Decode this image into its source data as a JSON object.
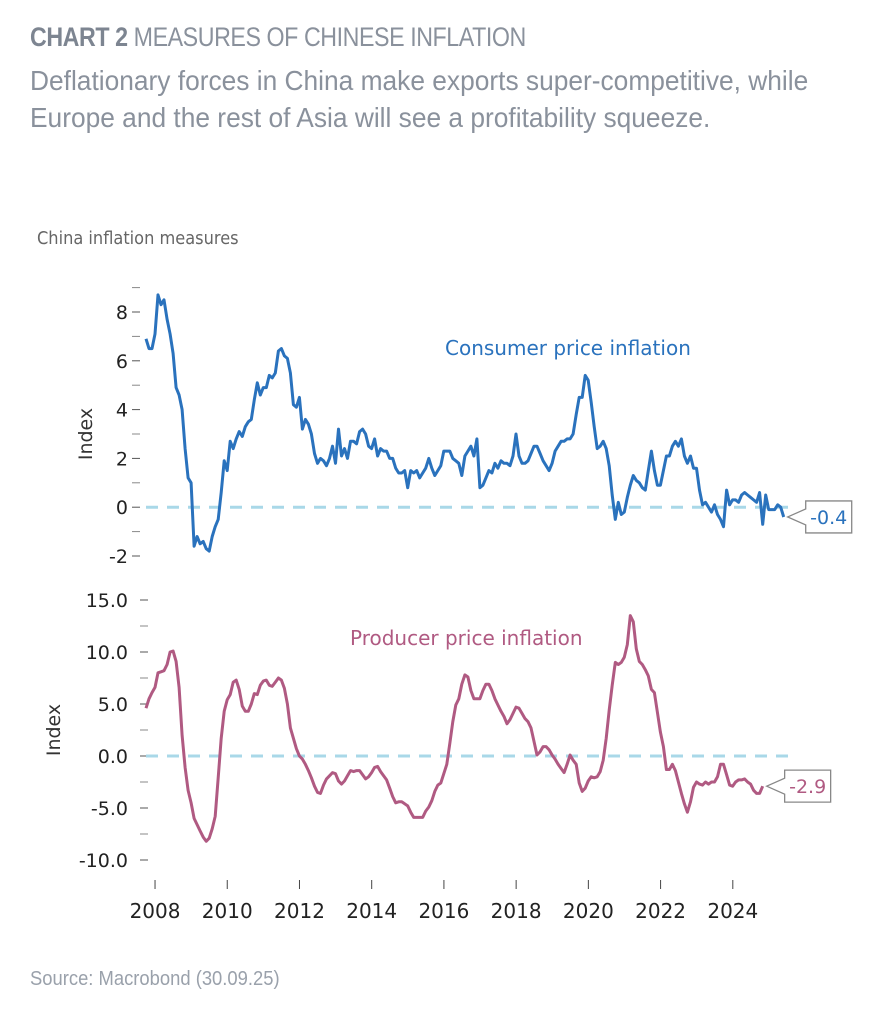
{
  "header": {
    "chart_number": "CHART 2",
    "title": "MEASURES OF CHINESE INFLATION",
    "subtitle": "Deflationary forces in China make exports super-competitive, while Europe and the rest of Asia will see a profitability squeeze."
  },
  "chart_label": "China inflation measures",
  "source": "Source: Macrobond (30.09.25)",
  "colors": {
    "cpi": "#2a72bd",
    "ppi": "#b05a82",
    "zero_line": "#a9d8e8",
    "text": "#222222",
    "callout_border": "#888888"
  },
  "chart_data": [
    {
      "type": "line",
      "title": "Consumer price inflation",
      "xlabel": "",
      "ylabel": "Index",
      "ylim": [
        -2,
        9
      ],
      "yticks": [
        "8",
        "6",
        "4",
        "2",
        "0",
        "-2"
      ],
      "ytick_values": [
        8,
        6,
        4,
        2,
        0,
        -2
      ],
      "xlim": [
        2007.75,
        2025.75
      ],
      "reference_line": 0,
      "last_value_label": "-0.4",
      "series": [
        {
          "name": "Consumer price inflation",
          "x_start": 2007.75,
          "x_step": 0.0833,
          "values": [
            6.9,
            6.5,
            6.5,
            7.1,
            8.7,
            8.3,
            8.5,
            7.7,
            7.1,
            6.3,
            4.9,
            4.6,
            4.0,
            2.4,
            1.2,
            1.0,
            -1.6,
            -1.2,
            -1.5,
            -1.4,
            -1.7,
            -1.8,
            -1.2,
            -0.8,
            -0.5,
            0.6,
            1.9,
            1.5,
            2.7,
            2.4,
            2.8,
            3.1,
            2.9,
            3.3,
            3.5,
            3.6,
            4.4,
            5.1,
            4.6,
            4.9,
            4.9,
            5.4,
            5.3,
            5.5,
            6.4,
            6.5,
            6.2,
            6.1,
            5.5,
            4.2,
            4.1,
            4.5,
            3.2,
            3.6,
            3.4,
            3.0,
            2.2,
            1.8,
            2.0,
            1.9,
            1.7,
            2.0,
            2.5,
            1.8,
            3.2,
            2.1,
            2.4,
            2.0,
            2.7,
            2.7,
            2.6,
            3.1,
            3.2,
            3.0,
            2.5,
            2.4,
            2.8,
            2.1,
            2.4,
            2.3,
            2.3,
            2.0,
            2.0,
            1.6,
            1.4,
            1.4,
            1.5,
            0.8,
            1.5,
            1.4,
            1.5,
            1.2,
            1.4,
            1.6,
            2.0,
            1.6,
            1.3,
            1.5,
            1.7,
            2.3,
            2.3,
            2.3,
            2.0,
            1.9,
            1.8,
            1.3,
            2.1,
            2.3,
            2.5,
            2.1,
            2.8,
            0.8,
            0.9,
            1.2,
            1.5,
            1.4,
            1.8,
            1.6,
            1.9,
            1.8,
            1.8,
            1.7,
            2.1,
            3.0,
            2.1,
            1.8,
            1.8,
            1.9,
            2.2,
            2.5,
            2.5,
            2.2,
            1.9,
            1.7,
            1.5,
            1.8,
            2.3,
            2.5,
            2.7,
            2.7,
            2.8,
            2.8,
            3.0,
            3.8,
            4.5,
            4.5,
            5.4,
            5.2,
            4.3,
            3.3,
            2.4,
            2.5,
            2.7,
            2.4,
            1.7,
            0.5,
            -0.5,
            0.2,
            -0.3,
            -0.2,
            0.4,
            0.9,
            1.3,
            1.1,
            1.0,
            0.8,
            0.7,
            1.5,
            2.3,
            1.5,
            0.9,
            0.9,
            1.5,
            2.1,
            2.1,
            2.5,
            2.7,
            2.5,
            2.8,
            2.1,
            1.8,
            2.1,
            1.6,
            1.6,
            0.7,
            0.1,
            0.2,
            0.0,
            -0.2,
            0.1,
            -0.3,
            -0.5,
            -0.8,
            0.7,
            0.1,
            0.3,
            0.3,
            0.2,
            0.5,
            0.6,
            0.5,
            0.4,
            0.3,
            0.2,
            0.6,
            -0.7,
            0.5,
            -0.1,
            -0.1,
            -0.1,
            0.1,
            0.0,
            -0.4
          ]
        }
      ]
    },
    {
      "type": "line",
      "title": "Producer price inflation",
      "xlabel": "",
      "ylabel": "Index",
      "ylim": [
        -10,
        15
      ],
      "yticks": [
        "15.0",
        "10.0",
        "5.0",
        "0.0",
        "-5.0",
        "-10.0"
      ],
      "ytick_values": [
        15,
        10,
        5,
        0,
        -5,
        -10
      ],
      "xlim": [
        2007.75,
        2025.75
      ],
      "xticks": [
        "2008",
        "2010",
        "2012",
        "2014",
        "2016",
        "2018",
        "2020",
        "2022",
        "2024"
      ],
      "xtick_values": [
        2008,
        2010,
        2012,
        2014,
        2016,
        2018,
        2020,
        2022,
        2024
      ],
      "reference_line": 0,
      "last_value_label": "-2.9",
      "series": [
        {
          "name": "Producer price inflation",
          "x_start": 2007.75,
          "x_step": 0.0833,
          "values": [
            4.6,
            5.5,
            6.1,
            6.6,
            8.0,
            8.1,
            8.2,
            8.8,
            10.0,
            10.1,
            9.1,
            6.6,
            2.0,
            -1.1,
            -3.3,
            -4.5,
            -6.0,
            -6.6,
            -7.2,
            -7.8,
            -8.2,
            -7.9,
            -7.0,
            -5.8,
            -2.1,
            1.7,
            4.3,
            5.4,
            5.9,
            7.1,
            7.3,
            6.4,
            4.8,
            4.3,
            4.3,
            5.0,
            6.0,
            5.9,
            6.8,
            7.2,
            7.3,
            6.8,
            6.7,
            7.1,
            7.5,
            7.3,
            6.5,
            5.0,
            2.7,
            1.7,
            0.7,
            0.0,
            -0.3,
            -0.8,
            -1.4,
            -2.1,
            -2.9,
            -3.5,
            -3.6,
            -2.8,
            -2.2,
            -1.9,
            -1.6,
            -1.7,
            -2.4,
            -2.7,
            -2.4,
            -1.9,
            -1.4,
            -1.5,
            -1.4,
            -1.4,
            -1.8,
            -2.2,
            -2.0,
            -1.6,
            -1.1,
            -1.0,
            -1.5,
            -1.9,
            -2.3,
            -3.1,
            -3.9,
            -4.5,
            -4.4,
            -4.4,
            -4.6,
            -4.8,
            -5.4,
            -5.9,
            -5.9,
            -5.9,
            -5.9,
            -5.3,
            -4.9,
            -4.3,
            -3.4,
            -2.8,
            -2.6,
            -1.7,
            -0.8,
            1.2,
            3.3,
            4.9,
            5.5,
            6.9,
            7.8,
            7.6,
            6.3,
            5.5,
            5.5,
            5.5,
            6.3,
            6.9,
            6.9,
            6.3,
            5.5,
            4.9,
            4.3,
            3.8,
            3.1,
            3.5,
            4.1,
            4.7,
            4.6,
            4.1,
            3.6,
            3.3,
            2.7,
            1.4,
            0.1,
            0.4,
            0.9,
            0.9,
            0.6,
            0.1,
            -0.3,
            -0.8,
            -1.2,
            -1.6,
            -0.8,
            0.1,
            -0.4,
            -0.8,
            -2.6,
            -3.4,
            -3.1,
            -2.4,
            -2.0,
            -2.1,
            -2.0,
            -1.5,
            -0.4,
            1.7,
            4.4,
            6.8,
            9.0,
            8.8,
            9.0,
            9.5,
            10.7,
            13.5,
            12.9,
            10.3,
            9.1,
            8.8,
            8.3,
            7.7,
            6.4,
            6.1,
            4.2,
            2.3,
            0.9,
            -1.3,
            -1.3,
            -0.8,
            -1.4,
            -2.5,
            -3.6,
            -4.6,
            -5.4,
            -4.4,
            -3.0,
            -2.5,
            -2.7,
            -2.8,
            -2.5,
            -2.7,
            -2.5,
            -2.5,
            -2.0,
            -0.8,
            -0.8,
            -1.8,
            -2.8,
            -2.9,
            -2.5,
            -2.3,
            -2.3,
            -2.2,
            -2.5,
            -2.7,
            -3.3,
            -3.6,
            -3.6,
            -2.9
          ]
        }
      ]
    }
  ]
}
